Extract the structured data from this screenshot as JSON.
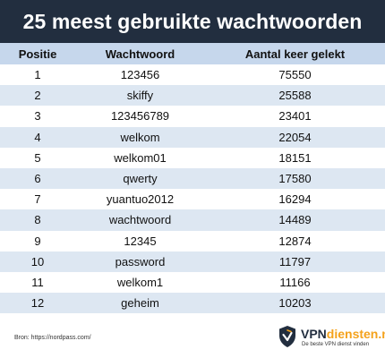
{
  "header": {
    "title": "25 meest gebruikte wachtwoorden"
  },
  "chart_data": {
    "type": "table",
    "columns": [
      "Positie",
      "Wachtwoord",
      "Aantal keer gelekt"
    ],
    "rows": [
      {
        "pos": "1",
        "password": "123456",
        "count": "75550"
      },
      {
        "pos": "2",
        "password": "skiffy",
        "count": "25588"
      },
      {
        "pos": "3",
        "password": "123456789",
        "count": "23401"
      },
      {
        "pos": "4",
        "password": "welkom",
        "count": "22054"
      },
      {
        "pos": "5",
        "password": "welkom01",
        "count": "18151"
      },
      {
        "pos": "6",
        "password": "qwerty",
        "count": "17580"
      },
      {
        "pos": "7",
        "password": "yuantuo2012",
        "count": "16294"
      },
      {
        "pos": "8",
        "password": "wachtwoord",
        "count": "14489"
      },
      {
        "pos": "9",
        "password": "12345",
        "count": "12874"
      },
      {
        "pos": "10",
        "password": "password",
        "count": "11797"
      },
      {
        "pos": "11",
        "password": "welkom1",
        "count": "11166"
      },
      {
        "pos": "12",
        "password": "geheim",
        "count": "10203"
      }
    ]
  },
  "footer": {
    "source": "Bron: https://nordpass.com/",
    "logo_vpn": "VPN",
    "logo_rest": "diensten.nl",
    "logo_tagline": "De beste VPN dienst vinden",
    "icon": "shield-icon"
  },
  "colors": {
    "header_bg": "#222e3f",
    "table_header_bg": "#c6d7ec",
    "row_stripe": "#dde7f2",
    "logo_accent": "#f4a21c"
  }
}
